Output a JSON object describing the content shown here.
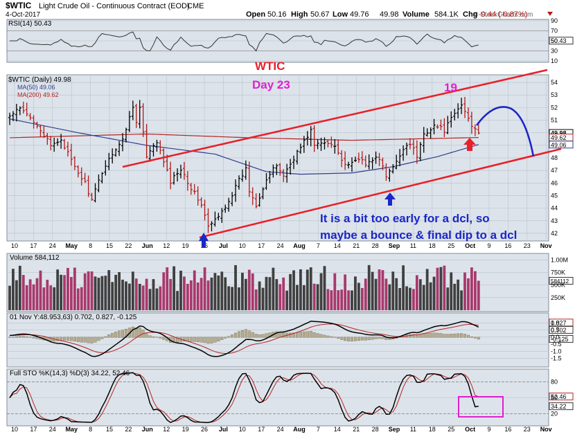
{
  "header": {
    "symbol": "$WTIC",
    "name": "Light Crude Oil - Continuous Contract (EOD)",
    "exchange": "CME",
    "date": "4-Oct-2017",
    "open_label": "Open",
    "open": "50.16",
    "high_label": "High",
    "high": "50.67",
    "low_label": "Low",
    "low": "49.76",
    "close": "49.98",
    "volume_label": "Volume",
    "volume": "584.1K",
    "chg_label": "Chg",
    "chg": "-0.44 (-0.87%)",
    "watermark": "© StockCharts.com"
  },
  "colors": {
    "panel_bg": "#dde3ea",
    "grid": "#b7c2cc",
    "up": "#000000",
    "down": "#b11a1a",
    "ma50": "#2d3e8c",
    "ma200": "#b42323",
    "channel": "#e8202a",
    "annotation_blue": "#1a27c8",
    "annotation_red": "#e8202a",
    "magenta": "#e01fd0",
    "vol_up": "#404040",
    "vol_down": "#a8396c"
  },
  "annotations": {
    "wtic": "WTIC",
    "day23": "Day 23",
    "nineteen": "19",
    "note1": "It is a bit too early for a dcl, so",
    "note2": "maybe a bounce & final dip to a dcl"
  },
  "chart_data": [
    {
      "panel": "rsi",
      "type": "line",
      "title": "RSI(14) 50.43",
      "last_value": "50.43",
      "ylim": [
        10,
        90
      ],
      "yticks": [
        "90",
        "70",
        "50",
        "30",
        "10"
      ],
      "reference_lines": [
        70,
        30
      ]
    },
    {
      "panel": "price",
      "type": "ohlc",
      "title": "$WTIC (Daily) 49.98",
      "legend": [
        "MA(50) 49.06",
        "MA(200) 49.62"
      ],
      "ylim": [
        41.5,
        54.5
      ],
      "yticks": [
        "54",
        "53",
        "52",
        "51",
        "50",
        "49",
        "48",
        "47",
        "46",
        "45",
        "44",
        "43",
        "42"
      ],
      "price_tags": [
        {
          "value": 49.98,
          "label": "49.98"
        },
        {
          "value": 49.62,
          "label": "49.62"
        },
        {
          "value": 49.06,
          "label": "49.06"
        }
      ],
      "x_labels": [
        "10",
        "17",
        "24",
        "May",
        "8",
        "15",
        "22",
        "Jun",
        "12",
        "19",
        "26",
        "Jul",
        "10",
        "17",
        "24",
        "Aug",
        "7",
        "14",
        "21",
        "28",
        "Sep",
        "11",
        "18",
        "25",
        "Oct",
        "9",
        "16",
        "23",
        "Nov"
      ],
      "close_anchors": [
        [
          0,
          51.3
        ],
        [
          3,
          51.9
        ],
        [
          8,
          50.7
        ],
        [
          12,
          48.9
        ],
        [
          15,
          49.5
        ],
        [
          19,
          47.2
        ],
        [
          22,
          46.0
        ],
        [
          24,
          44.6
        ],
        [
          27,
          46.9
        ],
        [
          30,
          48.4
        ],
        [
          33,
          49.4
        ],
        [
          36,
          52.2
        ],
        [
          37,
          50.8
        ],
        [
          38,
          52.0
        ],
        [
          40,
          48.0
        ],
        [
          43,
          49.3
        ],
        [
          47,
          46.1
        ],
        [
          50,
          47.2
        ],
        [
          53,
          45.6
        ],
        [
          56,
          44.3
        ],
        [
          58,
          42.5
        ],
        [
          61,
          43.3
        ],
        [
          64,
          44.6
        ],
        [
          67,
          46.2
        ],
        [
          69,
          47.1
        ],
        [
          70,
          45.4
        ],
        [
          72,
          44.3
        ],
        [
          75,
          46.3
        ],
        [
          78,
          47.4
        ],
        [
          80,
          46.6
        ],
        [
          83,
          48.0
        ],
        [
          86,
          49.3
        ],
        [
          88,
          50.2
        ],
        [
          89,
          49.0
        ],
        [
          92,
          49.2
        ],
        [
          95,
          49.1
        ],
        [
          97,
          47.8
        ],
        [
          99,
          47.3
        ],
        [
          102,
          48.0
        ],
        [
          104,
          47.4
        ],
        [
          107,
          48.2
        ],
        [
          109,
          47.3
        ],
        [
          110,
          46.5
        ],
        [
          113,
          47.6
        ],
        [
          115,
          48.8
        ],
        [
          117,
          49.2
        ],
        [
          119,
          48.1
        ],
        [
          121,
          49.9
        ],
        [
          124,
          50.6
        ],
        [
          127,
          50.2
        ],
        [
          130,
          51.5
        ],
        [
          132,
          52.2
        ],
        [
          133,
          51.7
        ],
        [
          135,
          50.6
        ],
        [
          136,
          50.4
        ],
        [
          137,
          49.98
        ]
      ],
      "ma50_anchors": [
        [
          0,
          51.1
        ],
        [
          20,
          50.0
        ],
        [
          40,
          49.0
        ],
        [
          60,
          48.3
        ],
        [
          75,
          46.9
        ],
        [
          85,
          46.7
        ],
        [
          100,
          46.8
        ],
        [
          112,
          47.3
        ],
        [
          125,
          48.1
        ],
        [
          137,
          49.06
        ]
      ],
      "ma200_anchors": [
        [
          0,
          49.6
        ],
        [
          40,
          49.9
        ],
        [
          70,
          49.6
        ],
        [
          100,
          49.4
        ],
        [
          137,
          49.62
        ]
      ]
    },
    {
      "panel": "volume",
      "type": "bar",
      "title": "Volume 584,112",
      "last_value": "584112",
      "ylim": [
        0,
        1100000
      ],
      "yticks": [
        "1.00M",
        "750K",
        "500K",
        "250K"
      ]
    },
    {
      "panel": "macd",
      "type": "line",
      "title": "01 Nov Y:48.953,63) 0.702, 0.827, -0.125",
      "values": {
        "macd": 0.702,
        "signal": 0.827,
        "hist": -0.125
      },
      "ylim": [
        -2.0,
        1.5
      ],
      "yticks": [
        "1.0",
        "0.5",
        "0.0",
        "-0.5",
        "-1.0",
        "-1.5"
      ],
      "tags": [
        "0.827",
        "0.702",
        "-0.125"
      ]
    },
    {
      "panel": "stochastic",
      "type": "line",
      "title": "Full STO %K(14,3) %D(3) 34.22, 52.46",
      "values": {
        "k": 34.22,
        "d": 52.46
      },
      "ylim": [
        0,
        100
      ],
      "yticks": [
        "80",
        "50",
        "20"
      ],
      "reference_lines": [
        80,
        20
      ],
      "tags": [
        "52.46",
        "34.22"
      ]
    }
  ]
}
